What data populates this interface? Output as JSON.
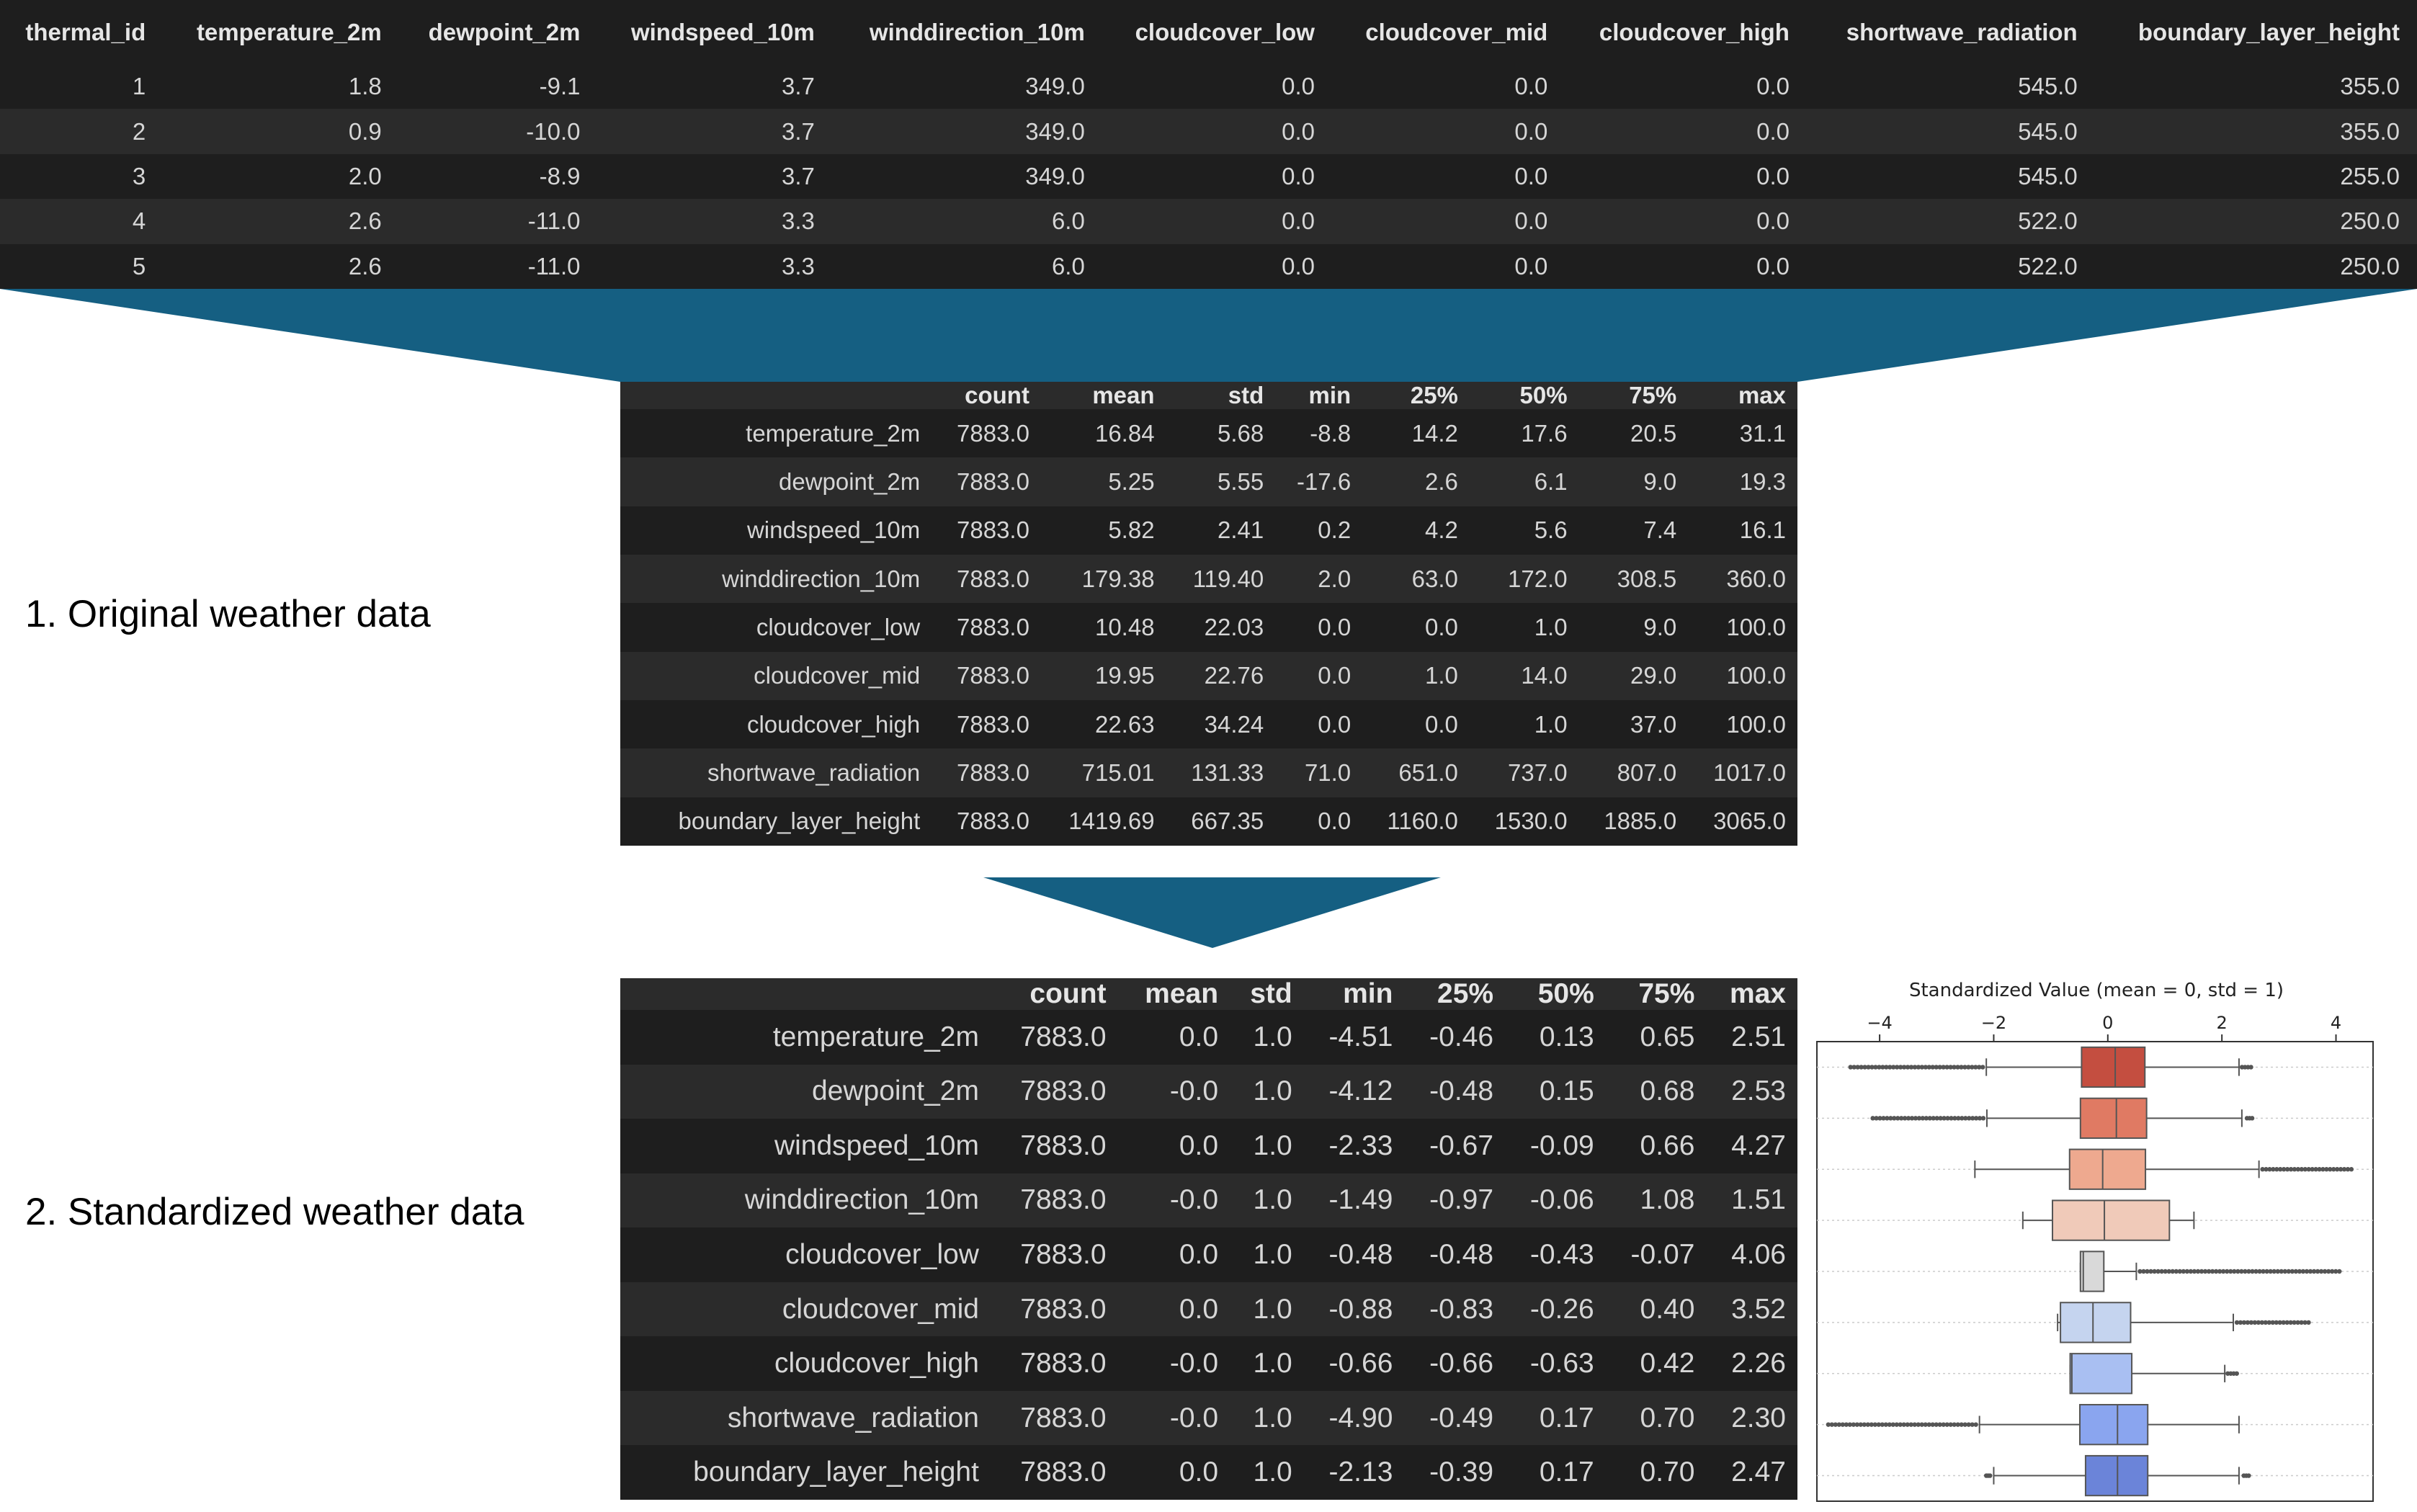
{
  "raw_table": {
    "columns": [
      "thermal_id",
      "temperature_2m",
      "dewpoint_2m",
      "windspeed_10m",
      "winddirection_10m",
      "cloudcover_low",
      "cloudcover_mid",
      "cloudcover_high",
      "shortwave_radiation",
      "boundary_layer_height"
    ],
    "rows": [
      [
        "1",
        "1.8",
        "-9.1",
        "3.7",
        "349.0",
        "0.0",
        "0.0",
        "0.0",
        "545.0",
        "355.0"
      ],
      [
        "2",
        "0.9",
        "-10.0",
        "3.7",
        "349.0",
        "0.0",
        "0.0",
        "0.0",
        "545.0",
        "355.0"
      ],
      [
        "3",
        "2.0",
        "-8.9",
        "3.7",
        "349.0",
        "0.0",
        "0.0",
        "0.0",
        "545.0",
        "255.0"
      ],
      [
        "4",
        "2.6",
        "-11.0",
        "3.3",
        "6.0",
        "0.0",
        "0.0",
        "0.0",
        "522.0",
        "250.0"
      ],
      [
        "5",
        "2.6",
        "-11.0",
        "3.3",
        "6.0",
        "0.0",
        "0.0",
        "0.0",
        "522.0",
        "250.0"
      ]
    ]
  },
  "desc_original": {
    "columns": [
      "count",
      "mean",
      "std",
      "min",
      "25%",
      "50%",
      "75%",
      "max"
    ],
    "rows": [
      {
        "label": "temperature_2m",
        "values": [
          "7883.0",
          "16.84",
          "5.68",
          "-8.8",
          "14.2",
          "17.6",
          "20.5",
          "31.1"
        ]
      },
      {
        "label": "dewpoint_2m",
        "values": [
          "7883.0",
          "5.25",
          "5.55",
          "-17.6",
          "2.6",
          "6.1",
          "9.0",
          "19.3"
        ]
      },
      {
        "label": "windspeed_10m",
        "values": [
          "7883.0",
          "5.82",
          "2.41",
          "0.2",
          "4.2",
          "5.6",
          "7.4",
          "16.1"
        ]
      },
      {
        "label": "winddirection_10m",
        "values": [
          "7883.0",
          "179.38",
          "119.40",
          "2.0",
          "63.0",
          "172.0",
          "308.5",
          "360.0"
        ]
      },
      {
        "label": "cloudcover_low",
        "values": [
          "7883.0",
          "10.48",
          "22.03",
          "0.0",
          "0.0",
          "1.0",
          "9.0",
          "100.0"
        ]
      },
      {
        "label": "cloudcover_mid",
        "values": [
          "7883.0",
          "19.95",
          "22.76",
          "0.0",
          "1.0",
          "14.0",
          "29.0",
          "100.0"
        ]
      },
      {
        "label": "cloudcover_high",
        "values": [
          "7883.0",
          "22.63",
          "34.24",
          "0.0",
          "0.0",
          "1.0",
          "37.0",
          "100.0"
        ]
      },
      {
        "label": "shortwave_radiation",
        "values": [
          "7883.0",
          "715.01",
          "131.33",
          "71.0",
          "651.0",
          "737.0",
          "807.0",
          "1017.0"
        ]
      },
      {
        "label": "boundary_layer_height",
        "values": [
          "7883.0",
          "1419.69",
          "667.35",
          "0.0",
          "1160.0",
          "1530.0",
          "1885.0",
          "3065.0"
        ]
      }
    ]
  },
  "desc_standardized": {
    "columns": [
      "count",
      "mean",
      "std",
      "min",
      "25%",
      "50%",
      "75%",
      "max"
    ],
    "rows": [
      {
        "label": "temperature_2m",
        "values": [
          "7883.0",
          "0.0",
          "1.0",
          "-4.51",
          "-0.46",
          "0.13",
          "0.65",
          "2.51"
        ]
      },
      {
        "label": "dewpoint_2m",
        "values": [
          "7883.0",
          "-0.0",
          "1.0",
          "-4.12",
          "-0.48",
          "0.15",
          "0.68",
          "2.53"
        ]
      },
      {
        "label": "windspeed_10m",
        "values": [
          "7883.0",
          "0.0",
          "1.0",
          "-2.33",
          "-0.67",
          "-0.09",
          "0.66",
          "4.27"
        ]
      },
      {
        "label": "winddirection_10m",
        "values": [
          "7883.0",
          "-0.0",
          "1.0",
          "-1.49",
          "-0.97",
          "-0.06",
          "1.08",
          "1.51"
        ]
      },
      {
        "label": "cloudcover_low",
        "values": [
          "7883.0",
          "0.0",
          "1.0",
          "-0.48",
          "-0.48",
          "-0.43",
          "-0.07",
          "4.06"
        ]
      },
      {
        "label": "cloudcover_mid",
        "values": [
          "7883.0",
          "0.0",
          "1.0",
          "-0.88",
          "-0.83",
          "-0.26",
          "0.40",
          "3.52"
        ]
      },
      {
        "label": "cloudcover_high",
        "values": [
          "7883.0",
          "-0.0",
          "1.0",
          "-0.66",
          "-0.66",
          "-0.63",
          "0.42",
          "2.26"
        ]
      },
      {
        "label": "shortwave_radiation",
        "values": [
          "7883.0",
          "-0.0",
          "1.0",
          "-4.90",
          "-0.49",
          "0.17",
          "0.70",
          "2.30"
        ]
      },
      {
        "label": "boundary_layer_height",
        "values": [
          "7883.0",
          "0.0",
          "1.0",
          "-2.13",
          "-0.39",
          "0.17",
          "0.70",
          "2.47"
        ]
      }
    ]
  },
  "captions": {
    "original": "1. Original weather data",
    "standardized": "2. Standardized weather data"
  },
  "colors": {
    "table_bg": "#1e1e1e",
    "table_row_alt": "#2b2b2b",
    "connector": "#155f82"
  },
  "chart_data": {
    "type": "boxplot",
    "title": "Standardized Value (mean = 0, std = 1)",
    "xlim": [
      -5.1,
      4.65
    ],
    "xticks": [
      -4,
      -2,
      0,
      2,
      4
    ],
    "axis_position": "top",
    "grid": "horizontal dotted",
    "series": [
      {
        "q1": -0.46,
        "median": 0.13,
        "q3": 0.65,
        "whisker_low": -2.13,
        "whisker_high": 2.3,
        "min": -4.51,
        "max": 2.51,
        "color": "#c44e40"
      },
      {
        "q1": -0.48,
        "median": 0.15,
        "q3": 0.68,
        "whisker_low": -2.12,
        "whisker_high": 2.35,
        "min": -4.12,
        "max": 2.53,
        "color": "#e07a63"
      },
      {
        "q1": -0.67,
        "median": -0.09,
        "q3": 0.66,
        "whisker_low": -2.33,
        "whisker_high": 2.65,
        "min": -2.33,
        "max": 4.27,
        "color": "#eea98f"
      },
      {
        "q1": -0.97,
        "median": -0.06,
        "q3": 1.08,
        "whisker_low": -1.49,
        "whisker_high": 1.51,
        "min": -1.49,
        "max": 1.51,
        "color": "#f0cab9"
      },
      {
        "q1": -0.48,
        "median": -0.43,
        "q3": -0.07,
        "whisker_low": -0.48,
        "whisker_high": 0.5,
        "min": -0.48,
        "max": 4.06,
        "color": "#d9d9d9"
      },
      {
        "q1": -0.83,
        "median": -0.26,
        "q3": 0.4,
        "whisker_low": -0.88,
        "whisker_high": 2.2,
        "min": -0.88,
        "max": 3.52,
        "color": "#c5d4ef"
      },
      {
        "q1": -0.66,
        "median": -0.63,
        "q3": 0.42,
        "whisker_low": -0.66,
        "whisker_high": 2.05,
        "min": -0.66,
        "max": 2.26,
        "color": "#a9bff2"
      },
      {
        "q1": -0.49,
        "median": 0.17,
        "q3": 0.7,
        "whisker_low": -2.25,
        "whisker_high": 2.3,
        "min": -4.9,
        "max": 2.3,
        "color": "#8aa5ef"
      },
      {
        "q1": -0.39,
        "median": 0.17,
        "q3": 0.7,
        "whisker_low": -2.0,
        "whisker_high": 2.3,
        "min": -2.13,
        "max": 2.47,
        "color": "#6b84d9"
      }
    ]
  }
}
